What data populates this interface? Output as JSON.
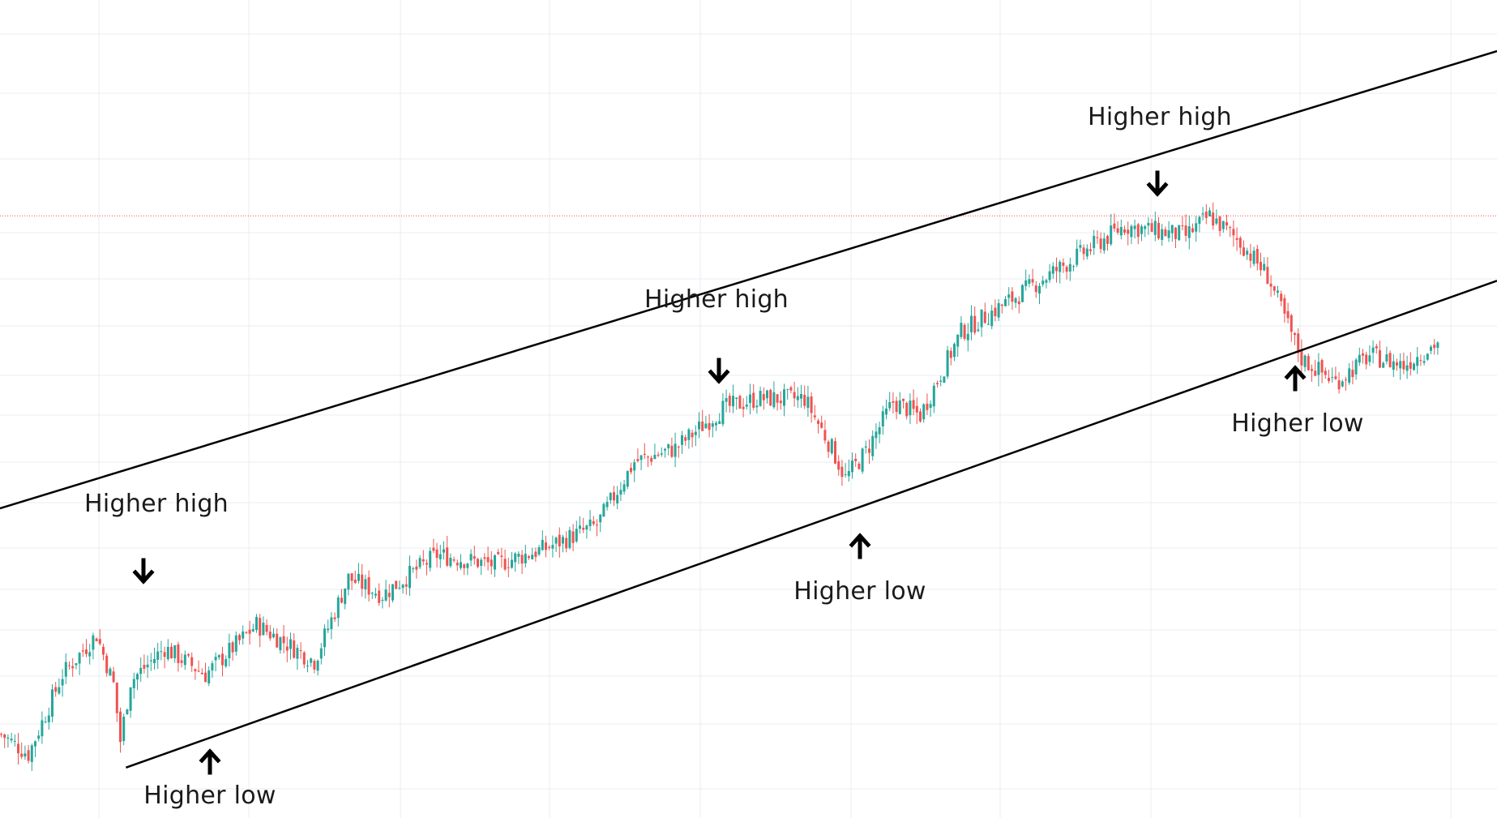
{
  "chart_data": {
    "type": "candlestick",
    "title": "",
    "xlabel": "",
    "ylabel": "",
    "grid": true,
    "colors": {
      "up": "#26a69a",
      "down": "#ef5350",
      "grid": "#e8eef2",
      "channel": "#000000",
      "price_line": "#ef5350",
      "annotation": "#1a1a1a"
    },
    "price_path_anchors": [
      [
        0,
        12
      ],
      [
        8,
        6
      ],
      [
        18,
        30
      ],
      [
        28,
        42
      ],
      [
        33,
        27
      ],
      [
        35,
        10
      ],
      [
        38,
        28
      ],
      [
        48,
        38
      ],
      [
        60,
        30
      ],
      [
        75,
        45
      ],
      [
        92,
        34
      ],
      [
        102,
        59
      ],
      [
        112,
        54
      ],
      [
        128,
        66
      ],
      [
        145,
        63
      ],
      [
        160,
        68
      ],
      [
        175,
        75
      ],
      [
        186,
        94
      ],
      [
        198,
        98
      ],
      [
        205,
        104
      ],
      [
        212,
        110
      ],
      [
        222,
        113
      ],
      [
        236,
        113
      ],
      [
        244,
        98
      ],
      [
        248,
        89
      ],
      [
        254,
        97
      ],
      [
        262,
        112
      ],
      [
        270,
        108
      ],
      [
        282,
        133
      ],
      [
        300,
        145
      ],
      [
        315,
        155
      ],
      [
        330,
        165
      ],
      [
        348,
        162
      ],
      [
        355,
        168
      ],
      [
        364,
        160
      ],
      [
        372,
        150
      ],
      [
        382,
        125
      ],
      [
        392,
        118
      ],
      [
        402,
        126
      ],
      [
        412,
        123
      ],
      [
        422,
        130
      ]
    ],
    "channel_lines": [
      {
        "name": "upper",
        "start": [
          0,
          80
        ],
        "end": [
          422,
          212
        ]
      },
      {
        "name": "lower",
        "start": [
          37,
          2
        ],
        "end": [
          422,
          142
        ]
      }
    ],
    "last_price": 168
  },
  "annotations": [
    {
      "label": "Higher high",
      "arrow": "down"
    },
    {
      "label": "Higher low",
      "arrow": "up"
    },
    {
      "label": "Higher high",
      "arrow": "down"
    },
    {
      "label": "Higher low",
      "arrow": "up"
    },
    {
      "label": "Higher high",
      "arrow": "down"
    },
    {
      "label": "Higher low",
      "arrow": "up"
    }
  ]
}
